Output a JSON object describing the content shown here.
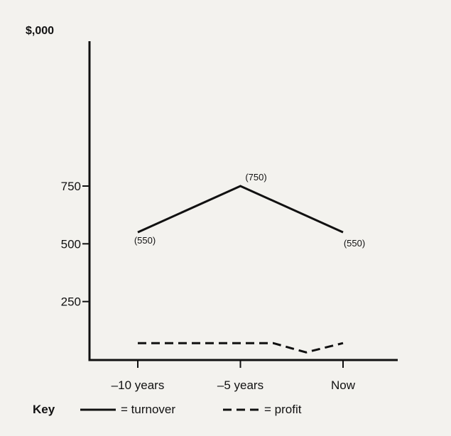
{
  "chart_data": {
    "type": "line",
    "y_unit_label": "$,000",
    "categories": [
      "-10 years",
      "-5 years",
      "Now"
    ],
    "yticks": [
      250,
      500,
      750
    ],
    "ylim": [
      0,
      790
    ],
    "series": [
      {
        "name": "turnover",
        "style": "solid",
        "points": [
          {
            "x": -10,
            "y": 550
          },
          {
            "x": -5,
            "y": 750
          },
          {
            "x": 0,
            "y": 550
          }
        ],
        "data_labels": [
          "(550)",
          "(750)",
          "(550)"
        ]
      },
      {
        "name": "profit",
        "style": "dashed",
        "points": [
          {
            "x": -10,
            "y": 70
          },
          {
            "x": -3.4,
            "y": 70
          },
          {
            "x": -1.8,
            "y": 30
          },
          {
            "x": 0,
            "y": 70
          }
        ]
      }
    ]
  },
  "key": {
    "title": "Key",
    "turnover_text": "= turnover",
    "profit_text": "= profit"
  },
  "colors": {
    "background": "#f3f2ee",
    "ink": "#111111"
  }
}
